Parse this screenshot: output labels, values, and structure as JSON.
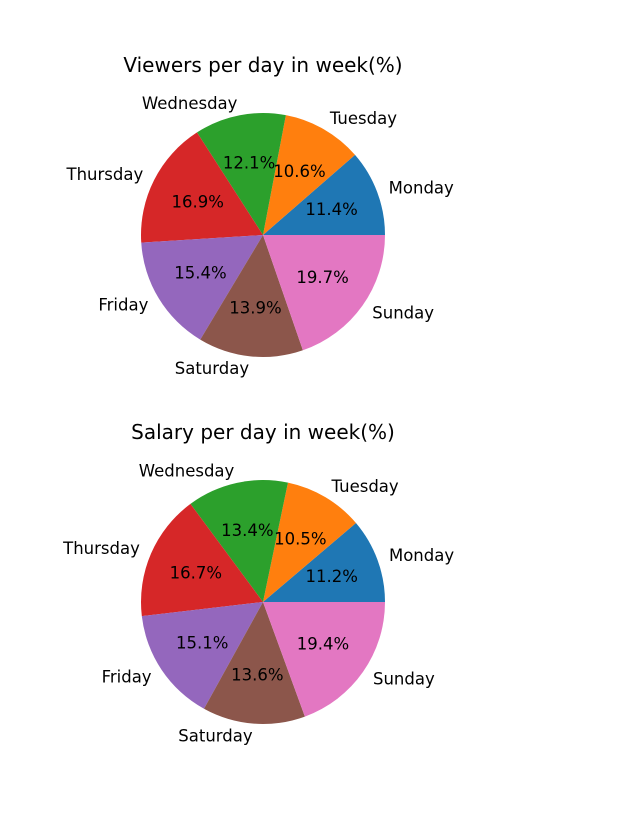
{
  "chart_data": [
    {
      "type": "pie",
      "title": "Viewers per day in week(%)",
      "categories": [
        "Monday",
        "Tuesday",
        "Wednesday",
        "Thursday",
        "Friday",
        "Saturday",
        "Sunday"
      ],
      "values": [
        11.4,
        10.6,
        12.1,
        16.9,
        15.4,
        13.9,
        19.7
      ],
      "pct_labels": [
        "11.4%",
        "10.6%",
        "12.1%",
        "16.9%",
        "15.4%",
        "13.9%",
        "19.7%"
      ],
      "colors": [
        "#1f77b4",
        "#ff7f0e",
        "#2ca02c",
        "#d62728",
        "#9467bd",
        "#8c564b",
        "#e377c2"
      ]
    },
    {
      "type": "pie",
      "title": "Salary per day in week(%)",
      "categories": [
        "Monday",
        "Tuesday",
        "Wednesday",
        "Thursday",
        "Friday",
        "Saturday",
        "Sunday"
      ],
      "values": [
        11.2,
        10.5,
        13.4,
        16.7,
        15.1,
        13.6,
        19.4
      ],
      "pct_labels": [
        "11.2%",
        "10.5%",
        "13.4%",
        "16.7%",
        "15.1%",
        "13.6%",
        "19.4%"
      ],
      "colors": [
        "#1f77b4",
        "#ff7f0e",
        "#2ca02c",
        "#d62728",
        "#9467bd",
        "#8c564b",
        "#e377c2"
      ]
    }
  ]
}
